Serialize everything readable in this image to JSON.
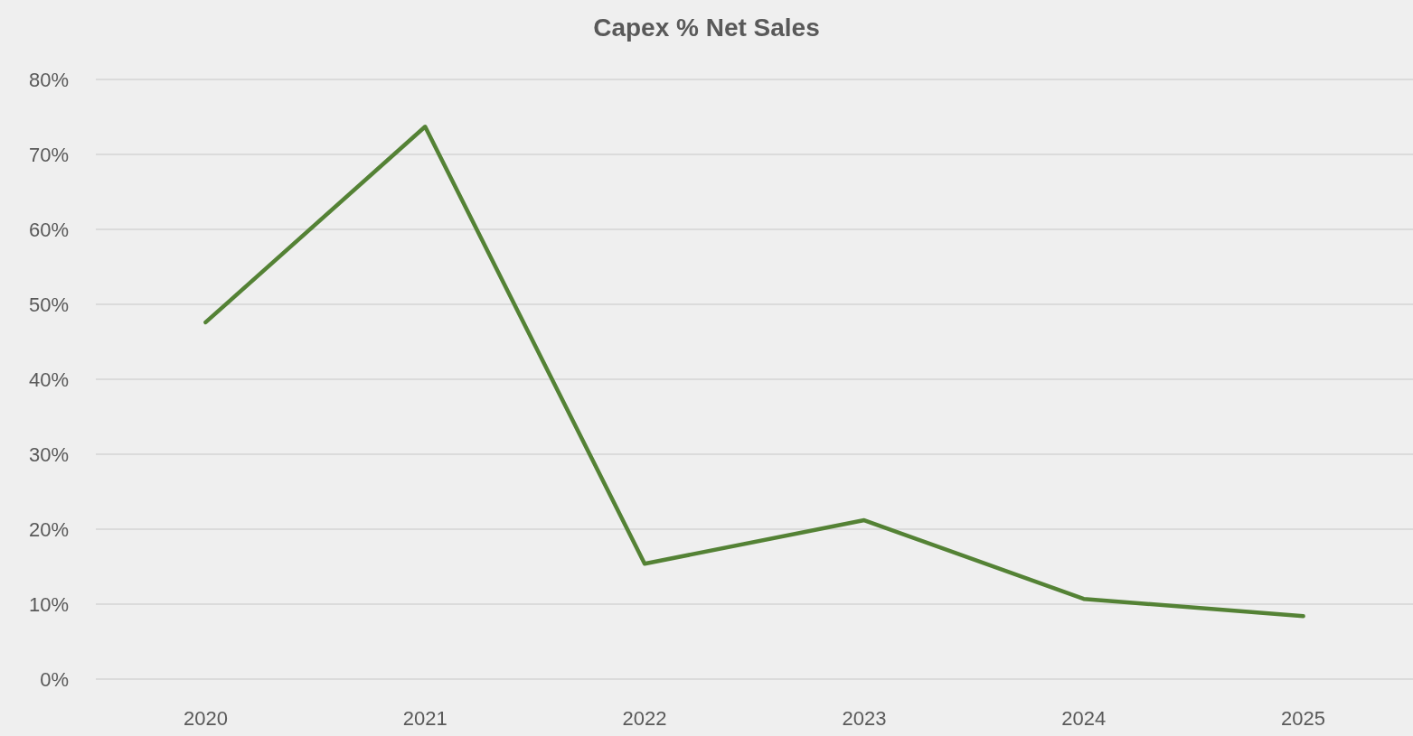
{
  "chart_data": {
    "type": "line",
    "title": "Capex % Net Sales",
    "categories": [
      "2020",
      "2021",
      "2022",
      "2023",
      "2024",
      "2025"
    ],
    "series": [
      {
        "color": "#548235",
        "values": [
          47.6,
          73.7,
          15.4,
          21.2,
          10.7,
          8.4
        ]
      }
    ],
    "ylim": [
      0,
      80
    ],
    "yticks": [
      {
        "value": 0,
        "label": "0%"
      },
      {
        "value": 10,
        "label": "10%"
      },
      {
        "value": 20,
        "label": "20%"
      },
      {
        "value": 30,
        "label": "30%"
      },
      {
        "value": 40,
        "label": "40%"
      },
      {
        "value": 50,
        "label": "50%"
      },
      {
        "value": 60,
        "label": "60%"
      },
      {
        "value": 70,
        "label": "70%"
      },
      {
        "value": 80,
        "label": "80%"
      }
    ],
    "grid": "y",
    "marker": "none",
    "line_style": "solid"
  }
}
